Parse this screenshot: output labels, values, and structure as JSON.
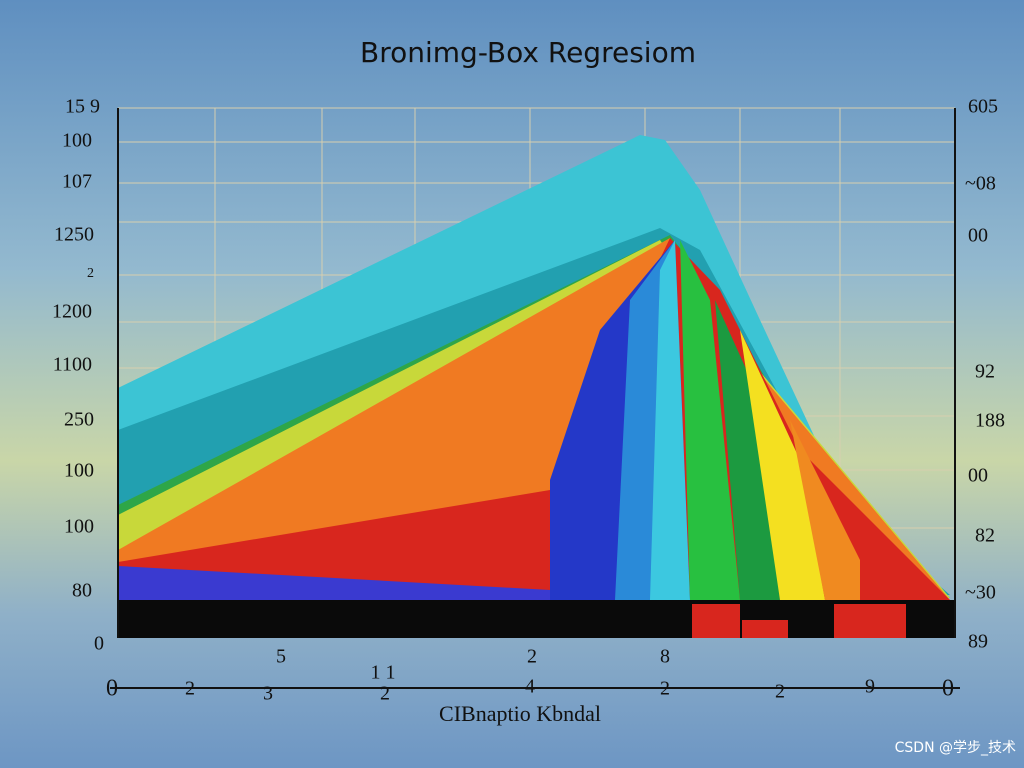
{
  "title": "Bronimg-Box Regresiom",
  "left_axis_labels": [
    "15 9",
    "100",
    "107",
    "1250",
    "2",
    "1200",
    "1100",
    "250",
    "100",
    "100",
    "80",
    "0"
  ],
  "right_axis_labels": [
    "605",
    "~08",
    "00",
    "92",
    "188",
    "00",
    "82",
    "~30",
    "89"
  ],
  "top_x_labels": [
    "5",
    "2",
    "8"
  ],
  "bottom_x_labels": [
    "0",
    "2",
    "3",
    "1 1",
    "2",
    "4",
    "2",
    "2",
    "9",
    "0"
  ],
  "x_axis_title": "CIBnaptio Kbndal",
  "watermark": "CSDN @学步_技术"
}
